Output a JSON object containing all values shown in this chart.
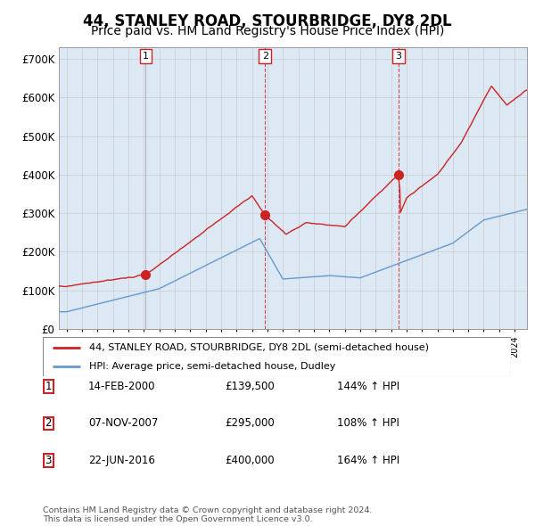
{
  "title": "44, STANLEY ROAD, STOURBRIDGE, DY8 2DL",
  "subtitle": "Price paid vs. HM Land Registry's House Price Index (HPI)",
  "title_fontsize": 12,
  "subtitle_fontsize": 10,
  "ylabel_ticks": [
    "£0",
    "£100K",
    "£200K",
    "£300K",
    "£400K",
    "£500K",
    "£600K",
    "£700K"
  ],
  "ytick_values": [
    0,
    100000,
    200000,
    300000,
    400000,
    500000,
    600000,
    700000
  ],
  "ylim": [
    0,
    730000
  ],
  "xlim_start": 1994.5,
  "xlim_end": 2024.8,
  "sale_dates": [
    2000.12,
    2007.85,
    2016.47
  ],
  "sale_prices": [
    139500,
    295000,
    400000
  ],
  "sale_labels": [
    "1",
    "2",
    "3"
  ],
  "vline_styles": [
    "solid_gray",
    "dashed_red",
    "dashed_red"
  ],
  "legend_line1": "44, STANLEY ROAD, STOURBRIDGE, DY8 2DL (semi-detached house)",
  "legend_line2": "HPI: Average price, semi-detached house, Dudley",
  "table_rows": [
    [
      "1",
      "14-FEB-2000",
      "£139,500",
      "144% ↑ HPI"
    ],
    [
      "2",
      "07-NOV-2007",
      "£295,000",
      "108% ↑ HPI"
    ],
    [
      "3",
      "22-JUN-2016",
      "£400,000",
      "164% ↑ HPI"
    ]
  ],
  "footnote": "Contains HM Land Registry data © Crown copyright and database right 2024.\nThis data is licensed under the Open Government Licence v3.0.",
  "line_color_red": "#cc2222",
  "line_color_blue": "#6699cc",
  "vline_color_gray": "#aaaaaa",
  "vline_color_red": "#cc2222",
  "grid_color": "#cccccc",
  "chart_bg_color": "#dce9f5",
  "background_color": "#ffffff",
  "box_outline_color": "#cc2222"
}
